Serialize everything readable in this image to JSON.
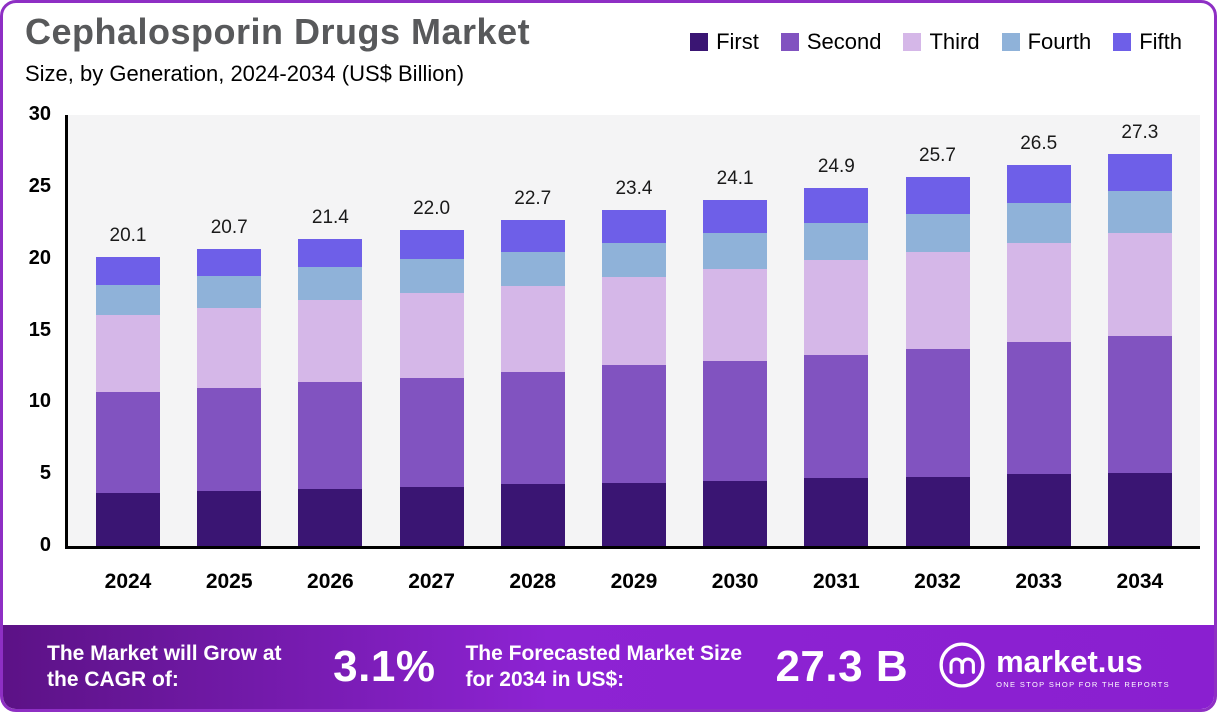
{
  "header": {
    "title": "Cephalosporin Drugs Market",
    "subtitle": "Size, by Generation, 2024-2034 (US$ Billion)"
  },
  "chart_data": {
    "type": "bar",
    "stacked": true,
    "title": "Cephalosporin Drugs Market Size, by Generation, 2024-2034 (US$ Billion)",
    "categories": [
      "2024",
      "2025",
      "2026",
      "2027",
      "2028",
      "2029",
      "2030",
      "2031",
      "2032",
      "2033",
      "2034"
    ],
    "series": [
      {
        "name": "First",
        "color": "#3a1573",
        "values": [
          3.7,
          3.8,
          4.0,
          4.1,
          4.3,
          4.4,
          4.5,
          4.7,
          4.8,
          5.0,
          5.1
        ]
      },
      {
        "name": "Second",
        "color": "#8153c0",
        "values": [
          7.0,
          7.2,
          7.4,
          7.6,
          7.8,
          8.2,
          8.4,
          8.6,
          8.9,
          9.2,
          9.5
        ]
      },
      {
        "name": "Third",
        "color": "#d5b7e8",
        "values": [
          5.4,
          5.6,
          5.7,
          5.9,
          6.0,
          6.1,
          6.4,
          6.6,
          6.8,
          6.9,
          7.2
        ]
      },
      {
        "name": "Fourth",
        "color": "#8fb2d9",
        "values": [
          2.1,
          2.2,
          2.3,
          2.4,
          2.4,
          2.4,
          2.5,
          2.6,
          2.6,
          2.8,
          2.9
        ]
      },
      {
        "name": "Fifth",
        "color": "#6e5fe8",
        "values": [
          1.9,
          1.9,
          2.0,
          2.0,
          2.2,
          2.3,
          2.3,
          2.4,
          2.6,
          2.6,
          2.6
        ]
      }
    ],
    "totals": [
      20.1,
      20.7,
      21.4,
      22.0,
      22.7,
      23.4,
      24.1,
      24.9,
      25.7,
      26.5,
      27.3
    ],
    "xlabel": "",
    "ylabel": "",
    "ylim": [
      0,
      30
    ],
    "y_ticks": [
      0,
      5,
      10,
      15,
      20,
      25,
      30
    ],
    "grid": false,
    "legend_position": "top-right"
  },
  "banner": {
    "cagr_label": "The Market will Grow at the CAGR of:",
    "cagr_value": "3.1%",
    "forecast_label": "The Forecasted Market Size for 2034 in US$:",
    "forecast_value": "27.3 B",
    "logo_text": "market.us",
    "logo_tagline": "ONE STOP SHOP FOR THE REPORTS"
  },
  "colors": {
    "border": "#8e2fc4",
    "title_text": "#58595b",
    "banner_gradient_start": "#5c1286",
    "banner_gradient_end": "#8a1fd0",
    "plot_background": "#f4f4f5",
    "axis": "#000000"
  }
}
